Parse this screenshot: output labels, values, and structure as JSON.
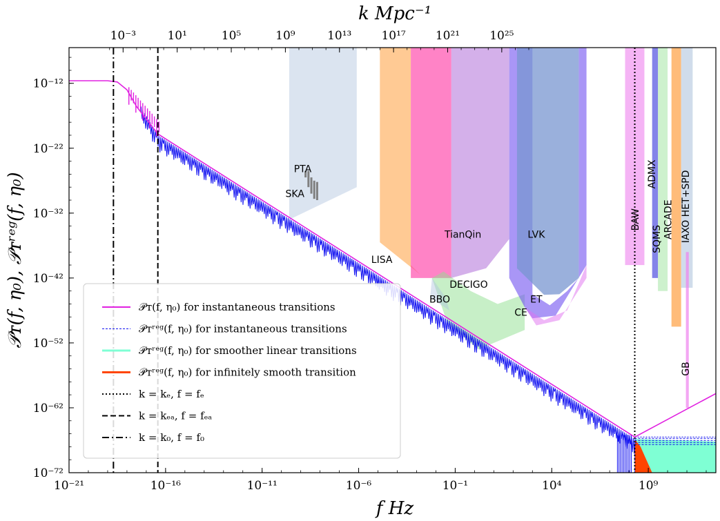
{
  "chart_data": {
    "type": "line",
    "xlabel": "f Hz",
    "x2label": "k Mpc⁻¹",
    "ylabel": "𝒫ᴛ(f, η₀), 𝒫ᴛʳᵉᵍ(f, η₀)",
    "xscale": "log",
    "yscale": "log",
    "xlim_exp": [
      -21,
      12.5
    ],
    "ylim_exp": [
      -72,
      -6.5
    ],
    "x_ticks": [
      {
        "value": -21,
        "label": "10⁻²¹"
      },
      {
        "value": -16,
        "label": "10⁻¹⁶"
      },
      {
        "value": -11,
        "label": "10⁻¹¹"
      },
      {
        "value": -6,
        "label": "10⁻⁶"
      },
      {
        "value": -1,
        "label": "10⁻¹"
      },
      {
        "value": 4,
        "label": "10⁴"
      },
      {
        "value": 9,
        "label": "10⁹"
      }
    ],
    "x2_ticks": [
      {
        "value": -3,
        "label": "10⁻³"
      },
      {
        "value": 1,
        "label": "10¹"
      },
      {
        "value": 5,
        "label": "10⁵"
      },
      {
        "value": 9,
        "label": "10⁹"
      },
      {
        "value": 13,
        "label": "10¹³"
      },
      {
        "value": 17,
        "label": "10¹⁷"
      },
      {
        "value": 21,
        "label": "10²¹"
      },
      {
        "value": 25,
        "label": "10²⁵"
      }
    ],
    "y_ticks": [
      {
        "value": -12,
        "label": "10⁻¹²"
      },
      {
        "value": -22,
        "label": "10⁻²²"
      },
      {
        "value": -32,
        "label": "10⁻³²"
      },
      {
        "value": -42,
        "label": "10⁻⁴²"
      },
      {
        "value": -52,
        "label": "10⁻⁵²"
      },
      {
        "value": -62,
        "label": "10⁻⁶²"
      },
      {
        "value": -72,
        "label": "10⁻⁷²"
      }
    ],
    "vlines": [
      {
        "x": -18.7,
        "style": "dashdot",
        "key": "k0"
      },
      {
        "x": -16.4,
        "style": "dashed",
        "key": "keq"
      },
      {
        "x": 8.3,
        "style": "dotted",
        "key": "ke"
      }
    ],
    "series": [
      {
        "key": "inst",
        "color": "#e020e0",
        "points": [
          [
            -21,
            -11.6
          ],
          [
            -19,
            -11.6
          ],
          [
            -18.5,
            -11.8
          ],
          [
            -18.0,
            -13.0
          ],
          [
            -17.5,
            -15.6
          ],
          [
            -16.4,
            -19.8
          ],
          [
            8.3,
            -66.5
          ],
          [
            12.5,
            -59.8
          ]
        ]
      },
      {
        "key": "inst_reg",
        "color": "#1010f0",
        "points": [
          [
            -17.3,
            -15.5
          ],
          [
            -16.4,
            -20.0
          ],
          [
            8.3,
            -66.8
          ]
        ],
        "oscillation_floor": 1.8
      },
      {
        "key": "linear_reg",
        "color": "#7fffd4",
        "points": [
          [
            8.3,
            -66.8
          ],
          [
            12.5,
            -67.2
          ],
          [
            12.5,
            -72
          ],
          [
            8.3,
            -72
          ]
        ]
      },
      {
        "key": "smooth_reg",
        "color": "#ff4500",
        "points": [
          [
            8.3,
            -66.8
          ],
          [
            8.6,
            -68.0
          ],
          [
            8.9,
            -70.0
          ],
          [
            9.2,
            -72
          ],
          [
            8.3,
            -72
          ]
        ]
      }
    ],
    "detectors": [
      {
        "name": "PTA",
        "color": "#808080",
        "label_x": -8.9,
        "label_y": -25.7
      },
      {
        "name": "SKA",
        "color": "#b0c4de",
        "label_x": -9.3,
        "label_y": -29.5
      },
      {
        "name": "LISA",
        "color": "#ffa64d",
        "label_x": -4.8,
        "label_y": -39.7
      },
      {
        "name": "TianQin",
        "color": "#ff50b0",
        "label_x": -0.6,
        "label_y": -35.8
      },
      {
        "name": "DECIGO",
        "color": "#90e090",
        "label_x": -0.3,
        "label_y": -43.5
      },
      {
        "name": "BBO",
        "color": "#b0c4de",
        "label_x": -1.8,
        "label_y": -45.8
      },
      {
        "name": "LVK",
        "color": "#6c8cd0",
        "label_x": 3.2,
        "label_y": -35.8
      },
      {
        "name": "ET",
        "color": "#8060f0",
        "label_x": 3.2,
        "label_y": -45.8
      },
      {
        "name": "CE",
        "color": "#e070f0",
        "label_x": 2.4,
        "label_y": -47.8
      },
      {
        "name": "BAW",
        "label_x": 8.5,
        "label_y": -33.0
      },
      {
        "name": "ADMX",
        "label_x": 9.35,
        "label_y": -26.0
      },
      {
        "name": "SQMS",
        "label_x": 9.6,
        "label_y": -36.0
      },
      {
        "name": "ARCADE",
        "label_x": 10.2,
        "label_y": -33.0
      },
      {
        "name": "IAXO HET+SPD",
        "label_x": 11.1,
        "label_y": -31.0
      },
      {
        "name": "GB",
        "label_x": 11.1,
        "label_y": -56.0
      }
    ],
    "legend": {
      "placement": "lower-left",
      "entries": [
        {
          "key": "inst",
          "label": "𝒫ᴛ(f, η₀) for instantaneous transitions",
          "color": "#e020e0",
          "style": "solid"
        },
        {
          "key": "inst_reg",
          "label": "𝒫ᴛʳᵉᵍ(f, η₀) for instantaneous transitions",
          "color": "#1010f0",
          "style": "dashed-thin"
        },
        {
          "key": "linear_reg",
          "label": "𝒫ᴛʳᵉᵍ(f, η₀) for smoother linear transitions",
          "color": "#7fffd4",
          "style": "solid"
        },
        {
          "key": "smooth_reg",
          "label": "𝒫ᴛʳᵉᵍ(f, η₀) for infinitely smooth transition",
          "color": "#ff4500",
          "style": "solid"
        },
        {
          "key": "ke",
          "label": "k = kₑ, f = fₑ",
          "color": "#000000",
          "style": "dotted"
        },
        {
          "key": "keq",
          "label": "k = kₑₐ, f = fₑₐ",
          "color": "#000000",
          "style": "dashed"
        },
        {
          "key": "k0",
          "label": "k = k₀, f = f₀",
          "color": "#000000",
          "style": "dashdot"
        }
      ]
    },
    "grid": false
  }
}
